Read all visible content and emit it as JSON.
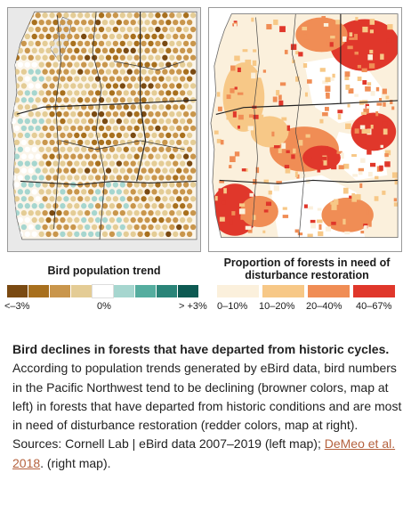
{
  "legend_left": {
    "title": "Bird population trend",
    "colors": [
      "#7a4a12",
      "#a8701e",
      "#c9964c",
      "#e4cc95",
      "#ffffff",
      "#a6d6cf",
      "#55ad9f",
      "#2a8478",
      "#0d5a52"
    ],
    "tick_min": "<–3%",
    "tick_mid": "0%",
    "tick_max": "> +3%"
  },
  "legend_right": {
    "title": "Proportion of forests in need of disturbance restoration",
    "colors": [
      "#fbf0dc",
      "#f7c887",
      "#f08d55",
      "#e0372b"
    ],
    "ticks": [
      "0–10%",
      "10–20%",
      "20–40%",
      "40–67%"
    ]
  },
  "caption": {
    "title": "Bird declines in forests that have departed from historic cycles.",
    "body": "According to population trends generated by eBird data, bird numbers in the Pacific Northwest tend to be declining (browner colors, map at left) in forests that have departed from historic conditions and are most in need of disturbance restoration (redder colors, map at right). Sources: Cornell Lab | eBird data 2007–2019 (left map);",
    "link": "DeMeo et al. 2018",
    "tail": ". (right map)."
  }
}
